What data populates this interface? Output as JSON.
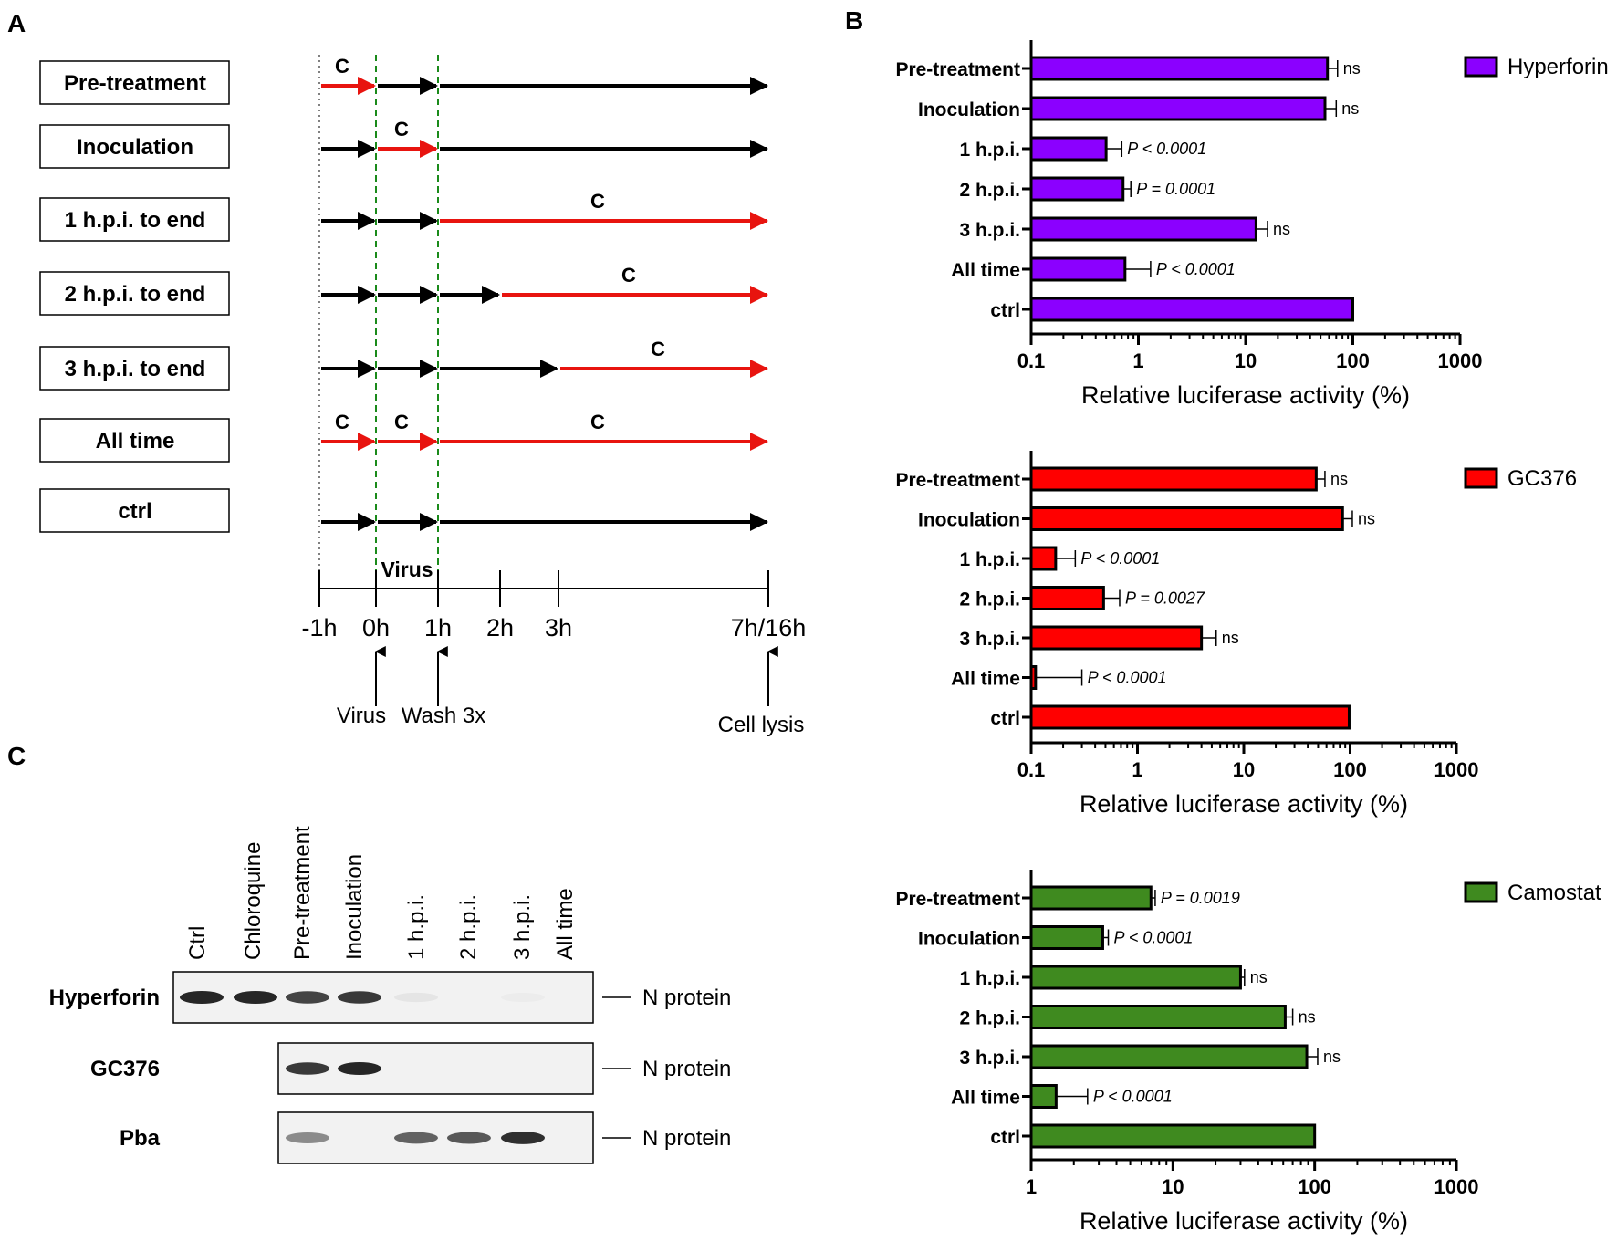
{
  "panels": {
    "a": "A",
    "b": "B",
    "c": "C"
  },
  "timeline": {
    "rows": [
      "Pre-treatment",
      "Inoculation",
      "1 h.p.i. to end",
      "2 h.p.i. to end",
      "3 h.p.i. to end",
      "All time",
      "ctrl"
    ],
    "compound_marker": "C",
    "virus_window_label": "Virus",
    "time_labels": [
      "-1h",
      "0h",
      "1h",
      "2h",
      "3h",
      "7h/16h"
    ],
    "time_values": [
      -1,
      0,
      1,
      2,
      3,
      7
    ],
    "events": {
      "virus": "Virus",
      "wash": "Wash 3x",
      "lysis": "Cell lysis"
    },
    "colors": {
      "treated": "#e8140f",
      "untreated": "#000000",
      "window": "#1a8a1a"
    }
  },
  "chart_data": [
    {
      "type": "bar",
      "orientation": "horizontal",
      "xscale": "log",
      "legend": "Hyperforin",
      "color": "#8b00ff",
      "categories": [
        "Pre-treatment",
        "Inoculation",
        "1 h.p.i.",
        "2 h.p.i.",
        "3 h.p.i.",
        "All time",
        "ctrl"
      ],
      "values": [
        58,
        55,
        0.5,
        0.72,
        12.5,
        0.75,
        100
      ],
      "errors": [
        72,
        70,
        0.7,
        0.85,
        16,
        1.3,
        null
      ],
      "annotations": [
        "ns",
        "ns",
        "P < 0.0001",
        "P = 0.0001",
        "ns",
        "P < 0.0001",
        ""
      ],
      "xlabel": "Relative luciferase activity (%)",
      "xlim": [
        0.1,
        1000
      ],
      "xticks": [
        "0.1",
        "1",
        "10",
        "100",
        "1000"
      ]
    },
    {
      "type": "bar",
      "orientation": "horizontal",
      "xscale": "log",
      "legend": "GC376",
      "color": "#ff0000",
      "categories": [
        "Pre-treatment",
        "Inoculation",
        "1 h.p.i.",
        "2 h.p.i.",
        "3 h.p.i.",
        "All time",
        "ctrl"
      ],
      "values": [
        48,
        85,
        0.17,
        0.48,
        4,
        0.11,
        98
      ],
      "errors": [
        58,
        105,
        0.26,
        0.68,
        5.5,
        0.3,
        null
      ],
      "annotations": [
        "ns",
        "ns",
        "P < 0.0001",
        "P =  0.0027",
        "ns",
        "P < 0.0001",
        ""
      ],
      "xlabel": "Relative luciferase activity (%)",
      "xlim": [
        0.1,
        1000
      ],
      "xticks": [
        "0.1",
        "1",
        "10",
        "100",
        "1000"
      ]
    },
    {
      "type": "bar",
      "orientation": "horizontal",
      "xscale": "log",
      "legend": "Camostat",
      "color": "#3f8a1f",
      "categories": [
        "Pre-treatment",
        "Inoculation",
        "1 h.p.i.",
        "2 h.p.i.",
        "3 h.p.i.",
        "All time",
        "ctrl"
      ],
      "values": [
        7,
        3.2,
        30,
        62,
        88,
        1.5,
        100
      ],
      "errors": [
        7.5,
        3.5,
        32,
        70,
        105,
        2.5,
        null
      ],
      "annotations": [
        "P = 0.0019",
        "P < 0.0001",
        "ns",
        "ns",
        "ns",
        "P < 0.0001",
        ""
      ],
      "xlabel": "Relative luciferase activity (%)",
      "xlim": [
        1,
        1000
      ],
      "xticks": [
        "1",
        "10",
        "100",
        "1000"
      ]
    }
  ],
  "blot": {
    "lanes": [
      "Ctrl",
      "Chloroquine",
      "Pre-treatment",
      "Inoculation",
      "1 h.p.i.",
      "2 h.p.i.",
      "3 h.p.i.",
      "All time"
    ],
    "rows": [
      {
        "label": "Hyperforin",
        "target": "N protein",
        "intensities": [
          1.0,
          1.0,
          0.85,
          0.9,
          0.06,
          0,
          0.03,
          0
        ]
      },
      {
        "label": "GC376",
        "target": "N protein",
        "intensities": [
          null,
          null,
          0.9,
          1.0,
          0,
          0,
          0,
          0
        ]
      },
      {
        "label": "Pba",
        "target": "N protein",
        "intensities": [
          null,
          null,
          0.5,
          0,
          0.7,
          0.75,
          0.95,
          0
        ]
      }
    ]
  }
}
